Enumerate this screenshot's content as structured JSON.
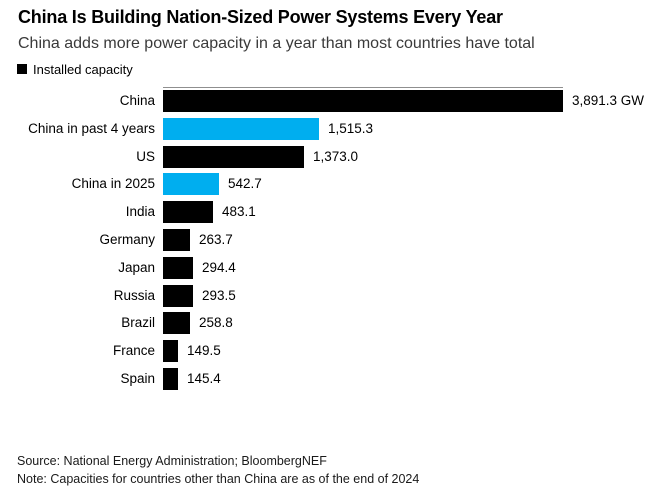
{
  "title": "China Is Building Nation-Sized Power Systems Every Year",
  "subtitle": "China adds more power capacity in a year than most countries have total",
  "legend": {
    "label": "Installed capacity",
    "swatch_color": "#000000"
  },
  "chart_data": {
    "type": "bar",
    "orientation": "horizontal",
    "title": "Installed capacity",
    "unit": "GW",
    "xlim": [
      0,
      3891.3
    ],
    "grid": false,
    "legend_position": "top-left",
    "categories": [
      "China",
      "China in past 4 years",
      "US",
      "China in 2025",
      "India",
      "Germany",
      "Japan",
      "Russia",
      "Brazil",
      "France",
      "Spain"
    ],
    "values": [
      3891.3,
      1515.3,
      1373.0,
      542.7,
      483.1,
      263.7,
      294.4,
      293.5,
      258.8,
      149.5,
      145.4
    ],
    "value_labels": [
      "3,891.3 GW",
      "1,515.3",
      "1,373.0",
      "542.7",
      "483.1",
      "263.7",
      "294.4",
      "293.5",
      "258.8",
      "149.5",
      "145.4"
    ],
    "highlighted": [
      false,
      true,
      false,
      true,
      false,
      false,
      false,
      false,
      false,
      false,
      false
    ],
    "bar_color_default": "#000000",
    "bar_color_highlight": "#00aeef",
    "axis_line_color": "#8f8f8f"
  },
  "footer": {
    "source": "Source: National Energy Administration; BloombergNEF",
    "note": "Note: Capacities for countries other than China are as of the end of 2024"
  }
}
